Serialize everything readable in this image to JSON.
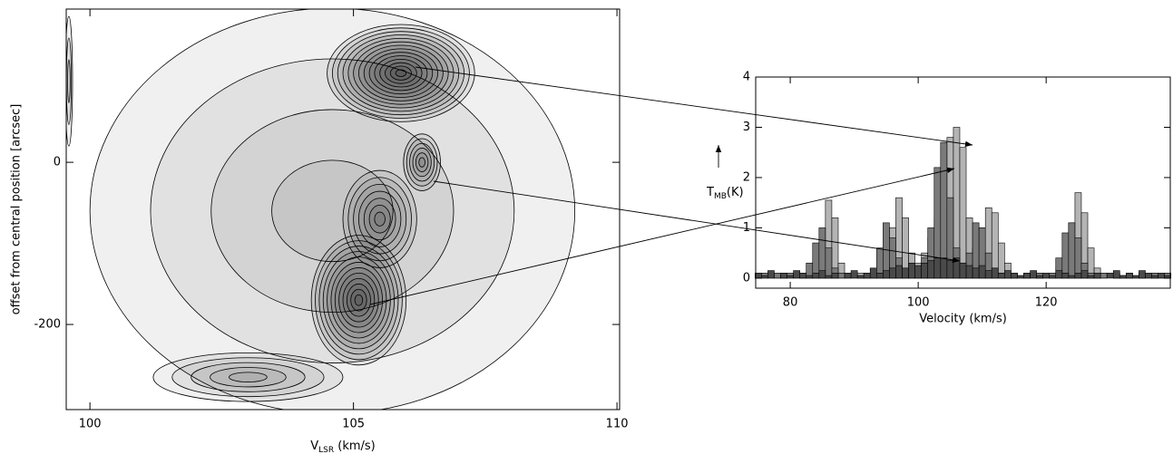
{
  "chart_data": [
    {
      "type": "contour",
      "xlabel": "V",
      "xlabel_sub": "LSR",
      "xlabel_unit": " (km/s)",
      "ylabel": "offset from central position [arcsec]",
      "xlim": [
        99.55,
        110.05
      ],
      "ylim": [
        -305,
        189
      ],
      "xticks": [
        100,
        105,
        110
      ],
      "yticks": [
        -200,
        0
      ],
      "peaks": [
        {
          "x": 104.6,
          "y": -60,
          "rx": 4.6,
          "ry": 250,
          "level": 4
        },
        {
          "x": 105.9,
          "y": 110,
          "rx": 1.4,
          "ry": 60,
          "level": 14
        },
        {
          "x": 106.3,
          "y": 0,
          "rx": 0.35,
          "ry": 35,
          "level": 6
        },
        {
          "x": 105.5,
          "y": -70,
          "rx": 0.7,
          "ry": 60,
          "level": 7
        },
        {
          "x": 105.1,
          "y": -170,
          "rx": 0.9,
          "ry": 80,
          "level": 12
        },
        {
          "x": 103.0,
          "y": -265,
          "rx": 1.8,
          "ry": 30,
          "level": 5
        },
        {
          "x": 99.6,
          "y": 100,
          "rx": 0.07,
          "ry": 80,
          "level": 3
        }
      ]
    },
    {
      "type": "step",
      "xlabel": "Velocity (km/s)",
      "ylabel": "T",
      "ylabel_sub": "MB",
      "ylabel_unit": "(K)",
      "xlim": [
        74.6,
        139.4
      ],
      "ylim": [
        -0.2,
        4
      ],
      "xticks": [
        80,
        100,
        120
      ],
      "yticks": [
        0,
        1,
        2,
        3,
        4
      ],
      "x": [
        75,
        76,
        77,
        78,
        79,
        80,
        81,
        82,
        83,
        84,
        85,
        86,
        87,
        88,
        89,
        90,
        91,
        92,
        93,
        94,
        95,
        96,
        97,
        98,
        99,
        100,
        101,
        102,
        103,
        104,
        105,
        106,
        107,
        108,
        109,
        110,
        111,
        112,
        113,
        114,
        115,
        116,
        117,
        118,
        119,
        120,
        121,
        122,
        123,
        124,
        125,
        126,
        127,
        128,
        129,
        130,
        131,
        132,
        133,
        134,
        135,
        136,
        137,
        138,
        139
      ],
      "series": [
        {
          "color": "#b4b4b4",
          "values": [
            0.1,
            0,
            0.1,
            0.05,
            0.1,
            0,
            0.1,
            0.05,
            0.1,
            0.3,
            0.8,
            1.55,
            1.2,
            0.3,
            0.1,
            0,
            0.1,
            0.05,
            0.1,
            0.2,
            0.5,
            1.0,
            1.6,
            1.2,
            0.5,
            0.3,
            0.5,
            0.8,
            1.2,
            2.0,
            2.8,
            3.0,
            2.6,
            1.2,
            0.6,
            1.0,
            1.4,
            1.3,
            0.7,
            0.3,
            0.1,
            0.05,
            0.1,
            0,
            0.1,
            0.05,
            0.1,
            0.2,
            0.6,
            1.1,
            1.7,
            1.3,
            0.6,
            0.2,
            0.1,
            0,
            0.1,
            0.05,
            0.1,
            0,
            0.1,
            0.05,
            0.1,
            0,
            0.1
          ]
        },
        {
          "color": "#7a7a7a",
          "values": [
            0.05,
            0.1,
            0,
            0.1,
            0.05,
            0.1,
            0,
            0.1,
            0.3,
            0.7,
            1.0,
            0.6,
            0.2,
            0.1,
            0,
            0.1,
            0.05,
            0.1,
            0.2,
            0.6,
            1.1,
            0.8,
            0.4,
            0.2,
            0.1,
            0.2,
            0.4,
            1.0,
            2.2,
            2.7,
            1.6,
            0.6,
            0.3,
            0.5,
            1.1,
            1.0,
            0.5,
            0.2,
            0.1,
            0.05,
            0.1,
            0,
            0.1,
            0.05,
            0.1,
            0,
            0.1,
            0.4,
            0.9,
            1.1,
            0.8,
            0.3,
            0.1,
            0.05,
            0.1,
            0,
            0.1,
            0.05,
            0.1,
            0.05,
            0.1,
            0,
            0.1,
            0.05,
            0.1
          ]
        },
        {
          "color": "#4a4a4a",
          "values": [
            0.1,
            0.05,
            0.15,
            0,
            0.1,
            0.05,
            0.15,
            0.1,
            0.05,
            0.1,
            0.15,
            0.05,
            0.1,
            0,
            0.1,
            0.15,
            0.05,
            0.1,
            0.2,
            0.1,
            0.15,
            0.2,
            0.25,
            0.2,
            0.3,
            0.25,
            0.3,
            0.35,
            0.4,
            0.4,
            0.35,
            0.4,
            0.3,
            0.25,
            0.2,
            0.25,
            0.15,
            0.2,
            0.1,
            0.15,
            0.1,
            0.05,
            0.1,
            0.15,
            0.05,
            0.1,
            0.05,
            0.15,
            0.1,
            0.05,
            0.1,
            0.15,
            0.05,
            0.1,
            0,
            0.1,
            0.15,
            0.05,
            0.1,
            0.05,
            0.15,
            0.1,
            0.05,
            0.1,
            0.05
          ]
        }
      ]
    }
  ]
}
